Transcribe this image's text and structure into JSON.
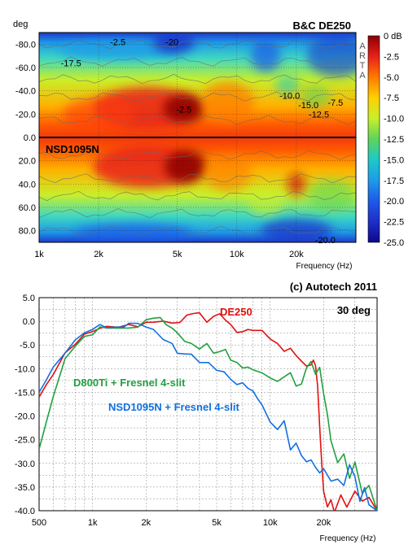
{
  "chart_data": [
    {
      "type": "heatmap",
      "title": "B&C DE250",
      "lower_label": "NSD1095N",
      "ylabel": "deg",
      "xlabel": "Frequency (Hz)",
      "watermark": "ARTA",
      "x_scale": "log",
      "xlim": [
        1000,
        40000
      ],
      "ylim": [
        -90,
        90
      ],
      "x_ticks": [
        {
          "value": 1000,
          "label": "1k"
        },
        {
          "value": 2000,
          "label": "2k"
        },
        {
          "value": 5000,
          "label": "5k"
        },
        {
          "value": 10000,
          "label": "10k"
        },
        {
          "value": 20000,
          "label": "20k"
        }
      ],
      "y_ticks": [
        {
          "value": -80,
          "label": "-80.0"
        },
        {
          "value": -60,
          "label": "-60.0"
        },
        {
          "value": -40,
          "label": "-40.0"
        },
        {
          "value": -20,
          "label": "-20.0"
        },
        {
          "value": 0,
          "label": "0.0"
        },
        {
          "value": 20,
          "label": "20.0"
        },
        {
          "value": 40,
          "label": "40.0"
        },
        {
          "value": 60,
          "label": "60.0"
        },
        {
          "value": 80,
          "label": "80.0"
        }
      ],
      "colorbar": {
        "range": [
          -25,
          0
        ],
        "ticks": [
          "0 dB",
          "-2.5",
          "-5.0",
          "-7.5",
          "-10.0",
          "-12.5",
          "-15.0",
          "-17.5",
          "-20.0",
          "-22.5",
          "-25.0"
        ],
        "colors": [
          "#8b0000",
          "#e8201a",
          "#ff7a00",
          "#ffd000",
          "#c8ef2a",
          "#5fd35a",
          "#1ec8c8",
          "#1e9be8",
          "#1e5ae8",
          "#1e2ec8",
          "#0a0a8c"
        ]
      },
      "contour_labels": [
        {
          "text": "-2.5",
          "freq": 2500,
          "deg": -82
        },
        {
          "text": "-20",
          "freq": 4700,
          "deg": -82
        },
        {
          "text": "-17.5",
          "freq": 1450,
          "deg": -64
        },
        {
          "text": "-2.5",
          "freq": 5400,
          "deg": -24
        },
        {
          "text": "-10.0",
          "freq": 18500,
          "deg": -36
        },
        {
          "text": "-15.0",
          "freq": 23000,
          "deg": -28
        },
        {
          "text": "-7.5",
          "freq": 31500,
          "deg": -30
        },
        {
          "text": "-12.5",
          "freq": 26000,
          "deg": -20
        },
        {
          "text": "-20.0",
          "freq": 28000,
          "deg": 88
        }
      ]
    },
    {
      "type": "line",
      "header": "(c) Autotech 2011",
      "annotation": "30 deg",
      "xlabel": "Frequency (Hz)",
      "x_scale": "log",
      "xlim": [
        500,
        40000
      ],
      "ylim": [
        -40,
        5
      ],
      "x_ticks": [
        {
          "value": 500,
          "label": "500"
        },
        {
          "value": 1000,
          "label": "1k"
        },
        {
          "value": 2000,
          "label": "2k"
        },
        {
          "value": 5000,
          "label": "5k"
        },
        {
          "value": 10000,
          "label": "10k"
        },
        {
          "value": 20000,
          "label": "20k"
        }
      ],
      "y_ticks": [
        5,
        0,
        -5,
        -10,
        -15,
        -20,
        -25,
        -30,
        -35,
        -40
      ],
      "y_tick_labels": [
        "5.0",
        "0.0",
        "-5.0",
        "-10.0",
        "-15.0",
        "-20.0",
        "-25.0",
        "-30.0",
        "-35.0",
        "-40.0"
      ],
      "series": [
        {
          "name": "DE250",
          "color": "#e01010",
          "x": [
            500,
            550,
            600,
            700,
            800,
            900,
            1000,
            1100,
            1200,
            1400,
            1600,
            1800,
            2000,
            2200,
            2500,
            2800,
            3100,
            3400,
            3700,
            4000,
            4400,
            4800,
            5200,
            5600,
            6000,
            6500,
            7000,
            7500,
            8000,
            9000,
            10000,
            11000,
            12000,
            13000,
            14000,
            15000,
            16000,
            17000,
            17500,
            18000,
            18500,
            19000,
            19500,
            20000,
            21000,
            22000,
            23000,
            25000,
            27000,
            30000,
            33000,
            36000,
            40000
          ],
          "y": [
            -16,
            -13.5,
            -11,
            -7,
            -4.5,
            -3,
            -2,
            -1.5,
            -1.2,
            -1,
            -1,
            -0.8,
            -0.5,
            0,
            0,
            -0.5,
            0,
            1,
            2,
            1.5,
            0,
            1,
            1.5,
            0.5,
            -1,
            -2,
            -2.5,
            -1.5,
            -2,
            -2,
            -3.5,
            -5,
            -6,
            -6,
            -7,
            -8.5,
            -9.5,
            -9,
            -8.5,
            -9,
            -14,
            -22,
            -30,
            -36,
            -39,
            -38,
            -40,
            -37,
            -39,
            -36,
            -38,
            -37,
            -40
          ]
        },
        {
          "name": "D800Ti + Fresnel 4-slit",
          "color": "#20a040",
          "x": [
            500,
            550,
            600,
            700,
            800,
            900,
            1000,
            1100,
            1200,
            1400,
            1600,
            1800,
            2000,
            2200,
            2400,
            2600,
            2800,
            3000,
            3300,
            3600,
            4000,
            4400,
            4800,
            5200,
            5600,
            6000,
            6500,
            7000,
            7500,
            8000,
            9000,
            10000,
            11000,
            12000,
            13000,
            14000,
            15000,
            16000,
            17000,
            18000,
            19000,
            20000,
            21000,
            22000,
            24000,
            26000,
            28000,
            30000,
            33000,
            36000,
            40000
          ],
          "y": [
            -27,
            -21,
            -16,
            -8,
            -5,
            -3.5,
            -2.5,
            -1.5,
            -1.2,
            -1.5,
            -1.5,
            -1,
            0,
            1,
            0.5,
            -0.5,
            -1.5,
            -2.5,
            -4,
            -5,
            -5.5,
            -5,
            -6.5,
            -6.5,
            -6,
            -8,
            -9,
            -9.5,
            -10,
            -10,
            -11,
            -12,
            -12.5,
            -12,
            -10.5,
            -14,
            -13,
            -10,
            -8.5,
            -11,
            -10,
            -15,
            -20,
            -25,
            -30,
            -28,
            -33,
            -30,
            -36,
            -35,
            -40
          ]
        },
        {
          "name": "NSD1095N + Fresnel 4-slit",
          "color": "#1070e0",
          "x": [
            500,
            550,
            600,
            700,
            800,
            900,
            1000,
            1100,
            1200,
            1400,
            1500,
            1600,
            1800,
            2000,
            2200,
            2500,
            2800,
            3000,
            3300,
            3600,
            4000,
            4500,
            5000,
            5500,
            6000,
            6500,
            7000,
            7500,
            8000,
            8500,
            9000,
            10000,
            11000,
            12000,
            13000,
            14000,
            15000,
            16000,
            17000,
            18000,
            19000,
            20000,
            22000,
            24000,
            26000,
            28000,
            30000,
            32000,
            34000,
            36000,
            40000
          ],
          "y": [
            -15,
            -12,
            -10,
            -6.5,
            -4,
            -2.5,
            -1.5,
            -1,
            -1,
            -1.5,
            -1,
            -0.5,
            -0.5,
            -1,
            -2,
            -3.5,
            -5,
            -6.5,
            -7,
            -7,
            -8.5,
            -9,
            -10,
            -11,
            -12,
            -13.5,
            -13,
            -14,
            -15,
            -16,
            -18,
            -21,
            -23,
            -21,
            -27,
            -26,
            -28,
            -30,
            -29,
            -31,
            -32,
            -31,
            -34,
            -33,
            -35,
            -30,
            -33,
            -38,
            -35,
            -39,
            -40
          ]
        }
      ]
    }
  ]
}
